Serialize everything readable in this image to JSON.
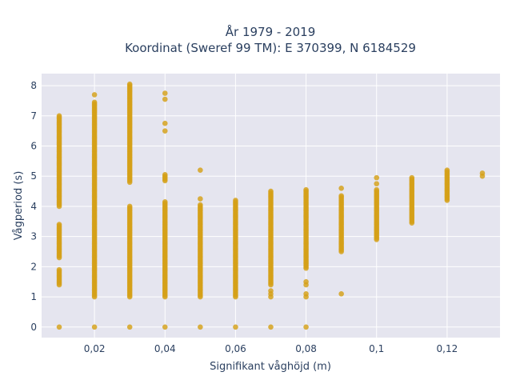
{
  "chart_data": {
    "type": "scatter",
    "title_line1": "År 1979 - 2019",
    "title_line2": "Koordinat (Sweref 99 TM): E 370399, N 6184529",
    "xlabel": "Signifikant våghöjd (m)",
    "ylabel": "Vågperiod (s)",
    "xlim": [
      0.005,
      0.135
    ],
    "ylim": [
      -0.35,
      8.4
    ],
    "x_ticks": [
      0.02,
      0.04,
      0.06,
      0.08,
      0.1,
      0.12
    ],
    "x_tick_labels": [
      "0,02",
      "0,04",
      "0,06",
      "0,08",
      "0,1",
      "0,12"
    ],
    "y_ticks": [
      0,
      1,
      2,
      3,
      4,
      5,
      6,
      7,
      8
    ],
    "y_tick_labels": [
      "0",
      "1",
      "2",
      "3",
      "4",
      "5",
      "6",
      "7",
      "8"
    ],
    "grid": true,
    "marker_color": "#d4a017",
    "background_color": "#e5e5ef",
    "series": [
      {
        "columns": [
          {
            "x": 0.01,
            "ranges": [
              [
                1.4,
                1.9
              ],
              [
                2.3,
                3.4
              ],
              [
                4.0,
                7.0
              ]
            ],
            "points": [
              0
            ]
          },
          {
            "x": 0.02,
            "ranges": [
              [
                1.0,
                7.45
              ]
            ],
            "points": [
              0,
              7.7
            ]
          },
          {
            "x": 0.03,
            "ranges": [
              [
                1.0,
                4.0
              ],
              [
                4.8,
                8.05
              ]
            ],
            "points": [
              0
            ]
          },
          {
            "x": 0.04,
            "ranges": [
              [
                1.0,
                4.15
              ],
              [
                4.85,
                5.05
              ]
            ],
            "points": [
              0,
              6.5,
              6.75,
              7.55,
              7.75
            ]
          },
          {
            "x": 0.05,
            "ranges": [
              [
                1.0,
                4.05
              ]
            ],
            "points": [
              0,
              4.25,
              5.2
            ]
          },
          {
            "x": 0.06,
            "ranges": [
              [
                1.0,
                4.2
              ]
            ],
            "points": [
              0
            ]
          },
          {
            "x": 0.07,
            "ranges": [
              [
                1.4,
                4.5
              ]
            ],
            "points": [
              0,
              1.0,
              1.1,
              1.2
            ]
          },
          {
            "x": 0.08,
            "ranges": [
              [
                1.95,
                4.55
              ]
            ],
            "points": [
              0,
              1.0,
              1.1,
              1.4,
              1.5
            ]
          },
          {
            "x": 0.09,
            "ranges": [
              [
                2.5,
                4.35
              ]
            ],
            "points": [
              1.1,
              4.6
            ]
          },
          {
            "x": 0.1,
            "ranges": [
              [
                2.9,
                4.55
              ]
            ],
            "points": [
              4.75,
              4.95
            ]
          },
          {
            "x": 0.11,
            "ranges": [
              [
                3.45,
                4.95
              ]
            ],
            "points": []
          },
          {
            "x": 0.12,
            "ranges": [
              [
                4.2,
                5.2
              ]
            ],
            "points": []
          },
          {
            "x": 0.13,
            "ranges": [],
            "points": [
              5.0,
              5.1
            ]
          }
        ]
      }
    ]
  }
}
